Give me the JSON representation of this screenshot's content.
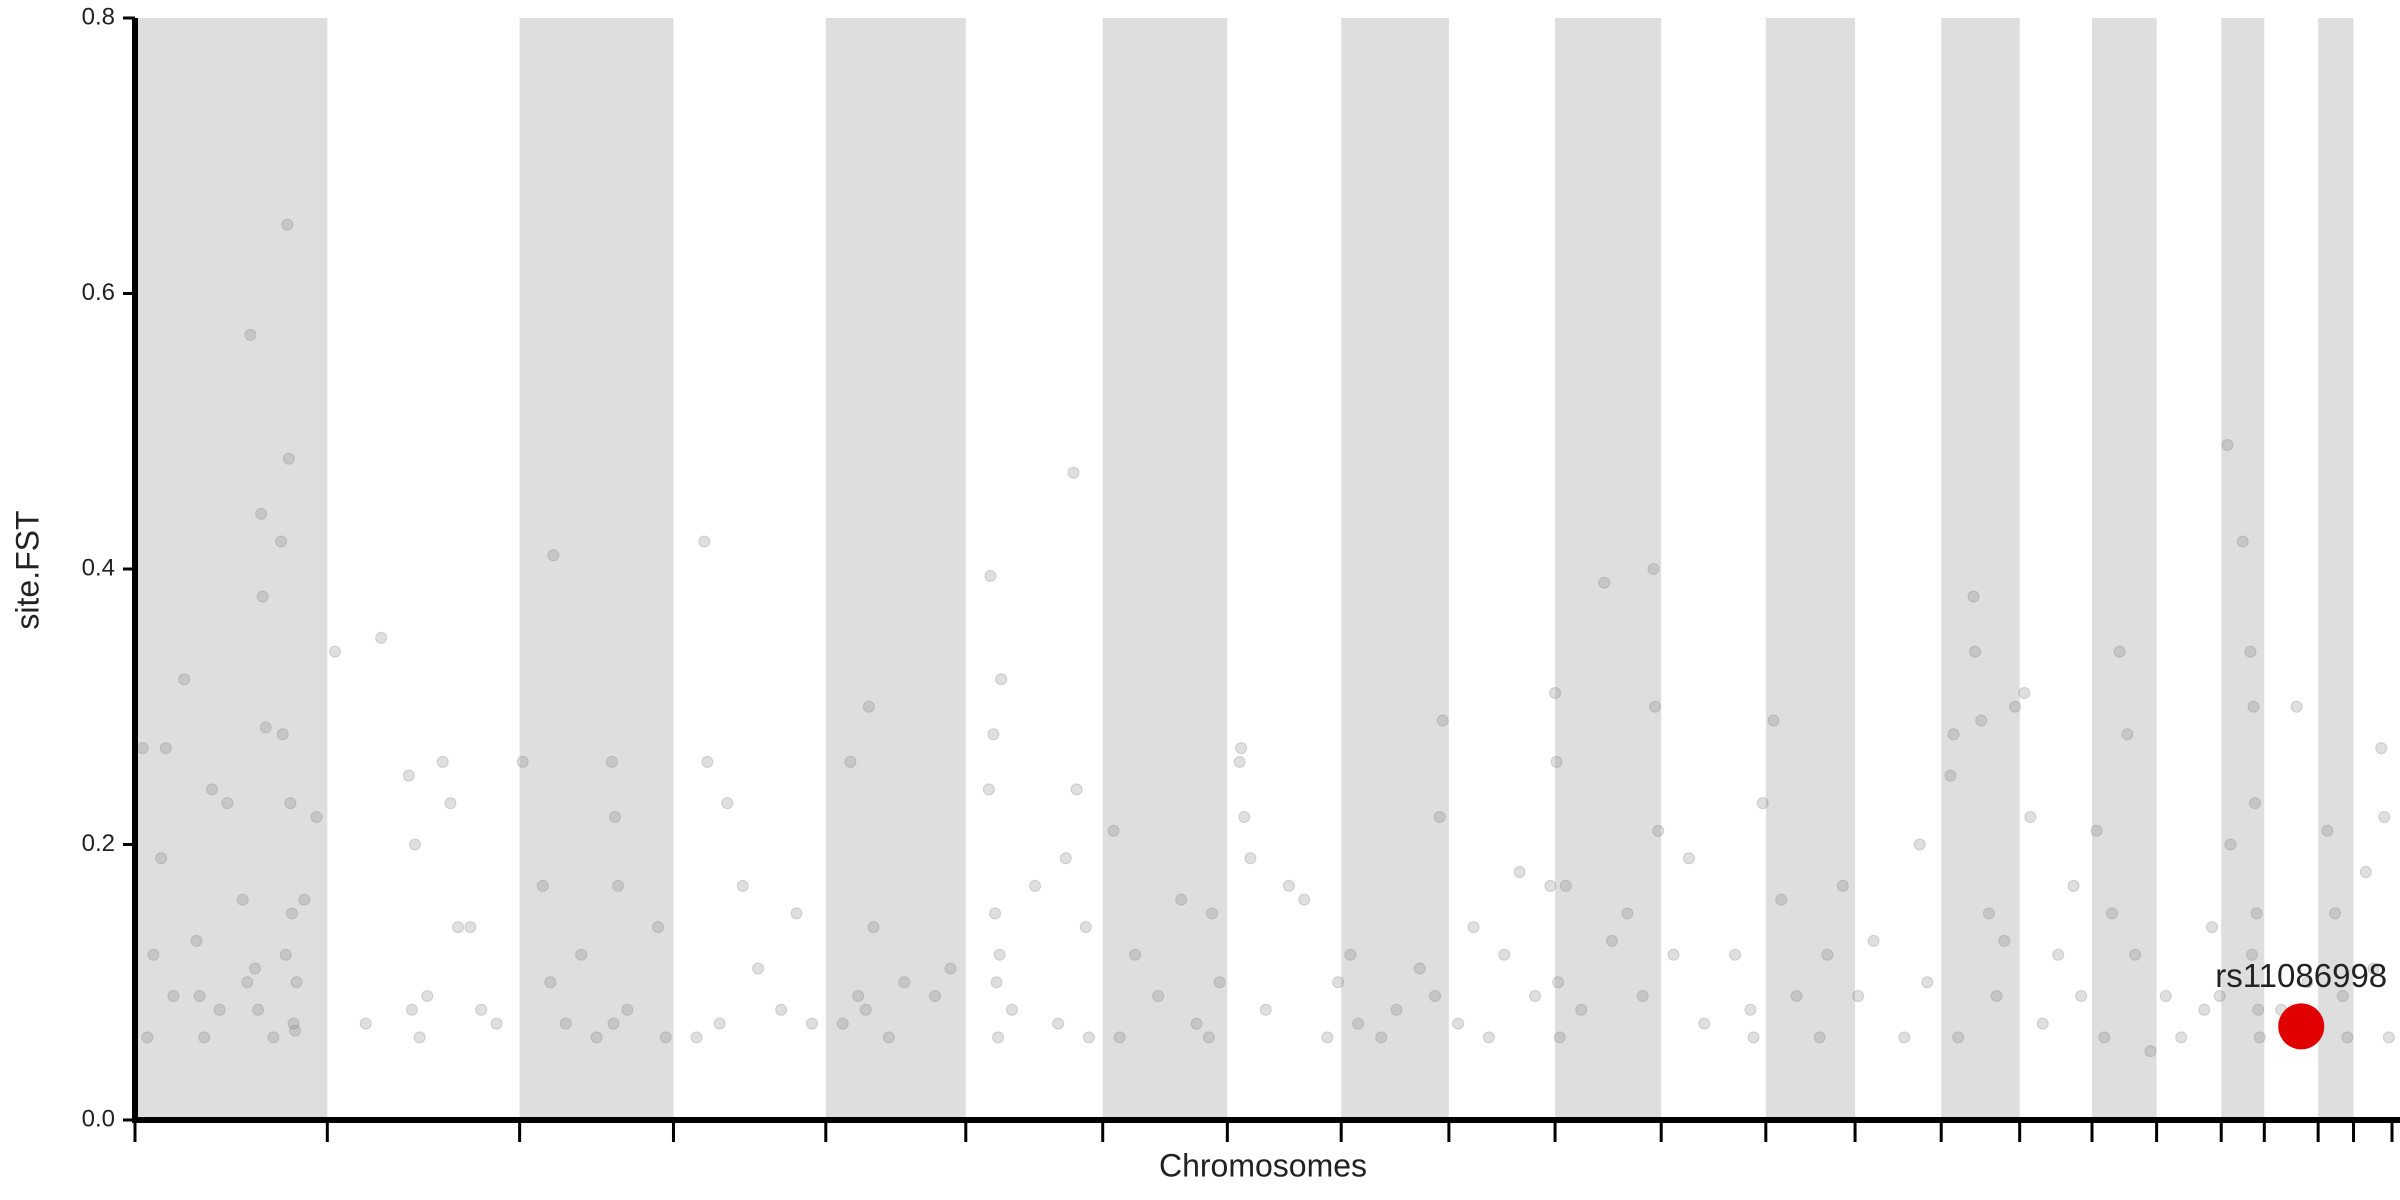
{
  "chart_data": {
    "type": "scatter",
    "xlabel": "Chromosomes",
    "ylabel": "site.FST",
    "xlim": [
      0,
      1467
    ],
    "ylim": [
      0,
      0.8
    ],
    "yticks": [
      {
        "value": 0,
        "label": "0.0"
      },
      0.2,
      0.4,
      0.6,
      0.8
    ],
    "chromosome_bounds": [
      0,
      125,
      250,
      350,
      449,
      540,
      629,
      710,
      784,
      854,
      923,
      992,
      1060,
      1118,
      1174,
      1225,
      1272,
      1314,
      1356,
      1384,
      1419,
      1442,
      1467
    ],
    "band_color": "#dedede",
    "series": [
      {
        "color": "#808080",
        "x": [
          5,
          8,
          12,
          17,
          20,
          25,
          32,
          40,
          45,
          50,
          55,
          60,
          75,
          78,
          80,
          82,
          83,
          85,
          90,
          95,
          96,
          99,
          100,
          101,
          103,
          104,
          105,
          110,
          118,
          102,
          98,
          70,
          73,
          42,
          130,
          160,
          178,
          180,
          182,
          185,
          200,
          205,
          210,
          218,
          225,
          235,
          150,
          190,
          252,
          265,
          272,
          270,
          280,
          310,
          312,
          314,
          311,
          320,
          340,
          345,
          300,
          290,
          365,
          370,
          372,
          380,
          395,
          405,
          420,
          440,
          385,
          430,
          465,
          470,
          477,
          480,
          475,
          490,
          500,
          520,
          530,
          460,
          556,
          558,
          559,
          560,
          561,
          562,
          563,
          570,
          585,
          600,
          605,
          610,
          612,
          618,
          620,
          555,
          636,
          640,
          650,
          665,
          680,
          690,
          700,
          705,
          698,
          718,
          719,
          721,
          725,
          735,
          750,
          760,
          775,
          782,
          790,
          795,
          810,
          820,
          835,
          845,
          850,
          848,
          860,
          870,
          880,
          890,
          900,
          910,
          920,
          923,
          924,
          925,
          926,
          930,
          955,
          940,
          960,
          970,
          980,
          987,
          988,
          990,
          1000,
          1010,
          1020,
          1040,
          1050,
          1052,
          1058,
          1065,
          1070,
          1080,
          1095,
          1100,
          1110,
          1120,
          1130,
          1150,
          1160,
          1165,
          1180,
          1182,
          1185,
          1195,
          1196,
          1200,
          1205,
          1210,
          1215,
          1222,
          1228,
          1232,
          1240,
          1250,
          1265,
          1260,
          1275,
          1280,
          1285,
          1290,
          1295,
          1300,
          1310,
          1320,
          1330,
          1345,
          1350,
          1355,
          1360,
          1362,
          1370,
          1375,
          1377,
          1378,
          1379,
          1380,
          1381,
          1376,
          1395,
          1405,
          1412,
          1416,
          1425,
          1430,
          1435,
          1438,
          1450,
          1460,
          1462,
          1465,
          1455
        ],
        "values": [
          0.27,
          0.06,
          0.12,
          0.19,
          0.27,
          0.09,
          0.32,
          0.13,
          0.06,
          0.24,
          0.08,
          0.23,
          0.57,
          0.11,
          0.08,
          0.44,
          0.38,
          0.285,
          0.06,
          0.42,
          0.28,
          0.65,
          0.48,
          0.23,
          0.07,
          0.065,
          0.1,
          0.16,
          0.22,
          0.15,
          0.12,
          0.16,
          0.1,
          0.09,
          0.34,
          0.35,
          0.25,
          0.08,
          0.2,
          0.06,
          0.26,
          0.23,
          0.14,
          0.14,
          0.08,
          0.07,
          0.07,
          0.09,
          0.26,
          0.17,
          0.41,
          0.1,
          0.07,
          0.26,
          0.22,
          0.17,
          0.07,
          0.08,
          0.14,
          0.06,
          0.06,
          0.12,
          0.06,
          0.42,
          0.26,
          0.07,
          0.17,
          0.11,
          0.08,
          0.07,
          0.23,
          0.15,
          0.26,
          0.09,
          0.3,
          0.14,
          0.08,
          0.06,
          0.1,
          0.09,
          0.11,
          0.07,
          0.395,
          0.28,
          0.15,
          0.1,
          0.06,
          0.12,
          0.32,
          0.08,
          0.17,
          0.07,
          0.19,
          0.47,
          0.24,
          0.14,
          0.06,
          0.24,
          0.21,
          0.06,
          0.12,
          0.09,
          0.16,
          0.07,
          0.15,
          0.1,
          0.06,
          0.26,
          0.27,
          0.22,
          0.19,
          0.08,
          0.17,
          0.16,
          0.06,
          0.1,
          0.12,
          0.07,
          0.06,
          0.08,
          0.11,
          0.09,
          0.29,
          0.22,
          0.07,
          0.14,
          0.06,
          0.12,
          0.18,
          0.09,
          0.17,
          0.31,
          0.26,
          0.1,
          0.06,
          0.17,
          0.39,
          0.08,
          0.13,
          0.15,
          0.09,
          0.4,
          0.3,
          0.21,
          0.12,
          0.19,
          0.07,
          0.12,
          0.08,
          0.06,
          0.23,
          0.29,
          0.16,
          0.09,
          0.06,
          0.12,
          0.17,
          0.09,
          0.13,
          0.06,
          0.2,
          0.1,
          0.25,
          0.28,
          0.06,
          0.38,
          0.34,
          0.29,
          0.15,
          0.09,
          0.13,
          0.3,
          0.31,
          0.22,
          0.07,
          0.12,
          0.09,
          0.17,
          0.21,
          0.06,
          0.15,
          0.34,
          0.28,
          0.12,
          0.05,
          0.09,
          0.06,
          0.08,
          0.14,
          0.09,
          0.49,
          0.2,
          0.42,
          0.34,
          0.3,
          0.23,
          0.15,
          0.08,
          0.06,
          0.12,
          0.08,
          0.3,
          0.1,
          0.06,
          0.21,
          0.15,
          0.09,
          0.06,
          0.18,
          0.27,
          0.22,
          0.06,
          0.11
        ]
      }
    ],
    "highlight": {
      "label": "rs11086998",
      "x": 1408,
      "value": 0.068,
      "color": "#e00000"
    }
  }
}
